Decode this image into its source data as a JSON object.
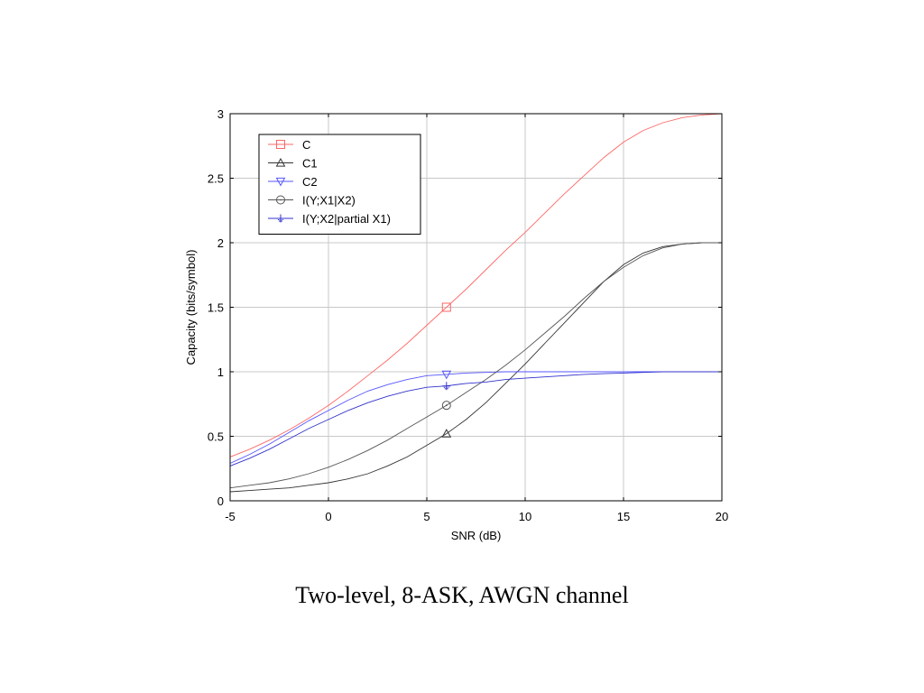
{
  "caption": "Two-level, 8-ASK, AWGN channel",
  "chart_data": {
    "type": "line",
    "title": "",
    "xlabel": "SNR (dB)",
    "ylabel": "Capacity (bits/symbol)",
    "xlim": [
      -5,
      20
    ],
    "ylim": [
      0,
      3
    ],
    "xticks": [
      -5,
      0,
      5,
      10,
      15,
      20
    ],
    "xtick_labels": [
      "-5",
      "0",
      "5",
      "10",
      "15",
      "20"
    ],
    "yticks": [
      0,
      0.5,
      1,
      1.5,
      2,
      2.5,
      3
    ],
    "ytick_labels": [
      "0",
      "0.5",
      "1",
      "1.5",
      "2",
      "2.5",
      "3"
    ],
    "grid": true,
    "legend_position": "top-left",
    "x": [
      -5,
      -4,
      -3,
      -2,
      -1,
      0,
      1,
      2,
      3,
      4,
      5,
      6,
      7,
      8,
      9,
      10,
      11,
      12,
      13,
      14,
      15,
      16,
      17,
      18,
      19,
      20
    ],
    "series": [
      {
        "name": "C",
        "color": "#ff6666",
        "marker": "square",
        "marker_x": 6,
        "values": [
          0.34,
          0.4,
          0.47,
          0.55,
          0.64,
          0.74,
          0.85,
          0.97,
          1.09,
          1.22,
          1.36,
          1.5,
          1.64,
          1.79,
          1.94,
          2.08,
          2.23,
          2.38,
          2.52,
          2.66,
          2.78,
          2.87,
          2.93,
          2.97,
          2.99,
          3.0
        ]
      },
      {
        "name": "C1",
        "color": "#333333",
        "marker": "triangle-up",
        "marker_x": 6,
        "values": [
          0.07,
          0.08,
          0.09,
          0.1,
          0.12,
          0.14,
          0.17,
          0.21,
          0.27,
          0.34,
          0.43,
          0.52,
          0.63,
          0.76,
          0.91,
          1.06,
          1.22,
          1.38,
          1.54,
          1.7,
          1.83,
          1.92,
          1.97,
          1.99,
          2.0,
          2.0
        ]
      },
      {
        "name": "C2",
        "color": "#5555ff",
        "marker": "triangle-down",
        "marker_x": 6,
        "values": [
          0.29,
          0.36,
          0.44,
          0.53,
          0.62,
          0.7,
          0.78,
          0.85,
          0.9,
          0.94,
          0.97,
          0.98,
          0.99,
          0.995,
          1.0,
          1.0,
          1.0,
          1.0,
          1.0,
          1.0,
          1.0,
          1.0,
          1.0,
          1.0,
          1.0,
          1.0
        ]
      },
      {
        "name": "I(Y;X1|X2)",
        "color": "#555555",
        "marker": "circle",
        "marker_x": 6,
        "values": [
          0.1,
          0.12,
          0.14,
          0.17,
          0.21,
          0.26,
          0.32,
          0.39,
          0.47,
          0.56,
          0.65,
          0.74,
          0.84,
          0.94,
          1.05,
          1.17,
          1.3,
          1.43,
          1.57,
          1.7,
          1.81,
          1.9,
          1.96,
          1.99,
          2.0,
          2.0
        ]
      },
      {
        "name": "I(Y;X2|partial X1)",
        "color": "#3333cc",
        "marker": "plus",
        "marker_x": 6,
        "values": [
          0.27,
          0.33,
          0.4,
          0.48,
          0.56,
          0.63,
          0.7,
          0.76,
          0.81,
          0.85,
          0.88,
          0.89,
          0.91,
          0.92,
          0.94,
          0.95,
          0.96,
          0.97,
          0.98,
          0.985,
          0.99,
          0.995,
          1.0,
          1.0,
          1.0,
          1.0
        ]
      }
    ]
  }
}
